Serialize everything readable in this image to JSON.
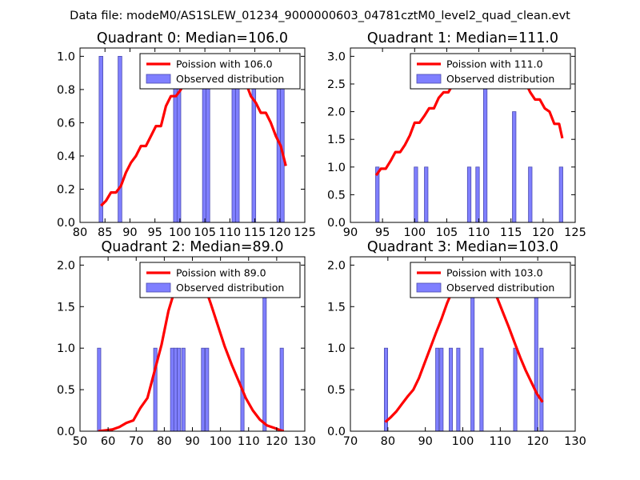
{
  "suptitle": "Data file: modeM0/AS1SLEW_01234_9000000603_04781cztM0_level2_quad_clean.evt",
  "colors": {
    "bar": "#7f7fff",
    "bar_edge": "#4b4bb0",
    "line": "#ff0000",
    "axis": "#000000"
  },
  "chart_data": [
    {
      "type": "bar+line",
      "title": "Quadrant 0: Median=106.0",
      "xlim": [
        80,
        125
      ],
      "ylim": [
        0,
        1.05
      ],
      "xticks": [
        80,
        85,
        90,
        95,
        100,
        105,
        110,
        115,
        120,
        125
      ],
      "yticks": [
        0.0,
        0.2,
        0.4,
        0.6,
        0.8,
        1.0
      ],
      "ytick_labels": [
        "0.0",
        "0.2",
        "0.4",
        "0.6",
        "0.8",
        "1.0"
      ],
      "legend": {
        "line_label": "Poission with 106.0",
        "bar_label": "Observed distribution",
        "loc": "upper right"
      },
      "bar_width": 0.75,
      "bars": [
        {
          "x": 84.2,
          "y": 1
        },
        {
          "x": 88.0,
          "y": 1
        },
        {
          "x": 99.1,
          "y": 1
        },
        {
          "x": 99.8,
          "y": 1
        },
        {
          "x": 104.9,
          "y": 1
        },
        {
          "x": 105.6,
          "y": 1
        },
        {
          "x": 110.8,
          "y": 1
        },
        {
          "x": 111.5,
          "y": 1
        },
        {
          "x": 114.8,
          "y": 1
        },
        {
          "x": 119.8,
          "y": 1
        },
        {
          "x": 120.5,
          "y": 1
        }
      ],
      "line": {
        "x": [
          84.2,
          85.2,
          86.2,
          87.2,
          88.2,
          89.2,
          90.2,
          91.2,
          92.2,
          93.2,
          94.2,
          95.2,
          96.2,
          97.2,
          98.2,
          99.2,
          100.2,
          101.2,
          102.2,
          103.2,
          104.2,
          105.2,
          106.2,
          107.2,
          108.2,
          109.2,
          110.2,
          111.2,
          112.2,
          113.2,
          114.2,
          115.2,
          116.2,
          117.2,
          118.2,
          119.2,
          120.2,
          121.2
        ],
        "y": [
          0.1,
          0.13,
          0.18,
          0.18,
          0.22,
          0.3,
          0.36,
          0.4,
          0.46,
          0.46,
          0.52,
          0.58,
          0.58,
          0.7,
          0.76,
          0.76,
          0.8,
          0.86,
          0.86,
          0.92,
          0.96,
          1.0,
          1.0,
          1.0,
          1.0,
          0.98,
          0.94,
          0.94,
          0.9,
          0.84,
          0.76,
          0.72,
          0.66,
          0.66,
          0.6,
          0.52,
          0.46,
          0.34
        ]
      }
    },
    {
      "type": "bar+line",
      "title": "Quadrant 1: Median=111.0",
      "xlim": [
        90,
        125
      ],
      "ylim": [
        0,
        3.15
      ],
      "xticks": [
        90,
        95,
        100,
        105,
        110,
        115,
        120,
        125
      ],
      "yticks": [
        0.0,
        0.5,
        1.0,
        1.5,
        2.0,
        2.5,
        3.0
      ],
      "ytick_labels": [
        "0.0",
        "0.5",
        "1.0",
        "1.5",
        "2.0",
        "2.5",
        "3.0"
      ],
      "legend": {
        "line_label": "Poission with 111.0",
        "bar_label": "Observed distribution",
        "loc": "upper right"
      },
      "bar_width": 0.55,
      "bars": [
        {
          "x": 94.2,
          "y": 1
        },
        {
          "x": 100.2,
          "y": 1
        },
        {
          "x": 101.8,
          "y": 1
        },
        {
          "x": 108.5,
          "y": 1
        },
        {
          "x": 109.8,
          "y": 1
        },
        {
          "x": 111.0,
          "y": 3
        },
        {
          "x": 115.5,
          "y": 2
        },
        {
          "x": 118.0,
          "y": 1
        },
        {
          "x": 122.8,
          "y": 1
        }
      ],
      "line": {
        "x": [
          94.0,
          94.75,
          95.5,
          96.25,
          97.0,
          97.75,
          98.5,
          99.25,
          100.0,
          100.75,
          101.5,
          102.25,
          103.0,
          103.75,
          104.5,
          105.25,
          106.0,
          106.75,
          107.5,
          108.25,
          109.0,
          109.75,
          110.5,
          111.25,
          112.0,
          112.75,
          113.5,
          114.25,
          115.0,
          115.75,
          116.5,
          117.25,
          118.0,
          118.75,
          119.5,
          120.25,
          121.0,
          121.75,
          122.5,
          123.0
        ],
        "y": [
          0.85,
          0.97,
          0.97,
          1.11,
          1.27,
          1.27,
          1.4,
          1.57,
          1.8,
          1.8,
          1.92,
          2.06,
          2.06,
          2.25,
          2.35,
          2.35,
          2.5,
          2.58,
          2.58,
          2.69,
          2.8,
          2.87,
          2.87,
          2.94,
          2.94,
          2.94,
          2.87,
          2.8,
          2.8,
          2.64,
          2.53,
          2.53,
          2.35,
          2.22,
          2.22,
          2.06,
          2.0,
          1.78,
          1.78,
          1.52
        ]
      }
    },
    {
      "type": "bar+line",
      "title": "Quadrant 2: Median=89.0",
      "xlim": [
        50,
        130
      ],
      "ylim": [
        0,
        2.1
      ],
      "xticks": [
        50,
        60,
        70,
        80,
        90,
        100,
        110,
        120,
        130
      ],
      "yticks": [
        0.0,
        0.5,
        1.0,
        1.5,
        2.0
      ],
      "ytick_labels": [
        "0.0",
        "0.5",
        "1.0",
        "1.5",
        "2.0"
      ],
      "legend": {
        "line_label": "Poission with 89.0",
        "bar_label": "Observed distribution",
        "loc": "upper right"
      },
      "bar_width": 1.2,
      "bars": [
        {
          "x": 56.8,
          "y": 1
        },
        {
          "x": 76.8,
          "y": 1
        },
        {
          "x": 82.8,
          "y": 1
        },
        {
          "x": 84.0,
          "y": 1
        },
        {
          "x": 85.2,
          "y": 1
        },
        {
          "x": 86.8,
          "y": 1
        },
        {
          "x": 93.8,
          "y": 1
        },
        {
          "x": 95.2,
          "y": 1
        },
        {
          "x": 107.8,
          "y": 1
        },
        {
          "x": 115.7,
          "y": 2
        },
        {
          "x": 121.8,
          "y": 1
        }
      ],
      "line": {
        "x": [
          56.5,
          59.0,
          61.5,
          64.0,
          66.5,
          69.0,
          71.5,
          74.0,
          76.5,
          79.0,
          81.5,
          84.0,
          86.5,
          89.0,
          91.5,
          94.0,
          96.5,
          99.0,
          101.5,
          104.0,
          106.5,
          109.0,
          111.5,
          114.0,
          116.5,
          119.0,
          121.5,
          122.5
        ],
        "y": [
          0.0,
          0.01,
          0.02,
          0.05,
          0.1,
          0.13,
          0.28,
          0.4,
          0.72,
          1.04,
          1.45,
          1.73,
          1.92,
          2.0,
          1.94,
          1.78,
          1.54,
          1.28,
          1.02,
          0.8,
          0.6,
          0.4,
          0.25,
          0.14,
          0.07,
          0.04,
          0.01,
          0.0
        ]
      }
    },
    {
      "type": "bar+line",
      "title": "Quadrant 3: Median=103.0",
      "xlim": [
        70,
        130
      ],
      "ylim": [
        0,
        2.1
      ],
      "xticks": [
        70,
        80,
        90,
        100,
        110,
        120,
        130
      ],
      "yticks": [
        0.0,
        0.5,
        1.0,
        1.5,
        2.0
      ],
      "ytick_labels": [
        "0.0",
        "0.5",
        "1.0",
        "1.5",
        "2.0"
      ],
      "legend": {
        "line_label": "Poission with 103.0",
        "bar_label": "Observed distribution",
        "loc": "upper right"
      },
      "bar_width": 0.9,
      "bars": [
        {
          "x": 79.5,
          "y": 1
        },
        {
          "x": 93.2,
          "y": 1
        },
        {
          "x": 94.3,
          "y": 1
        },
        {
          "x": 96.8,
          "y": 1
        },
        {
          "x": 98.8,
          "y": 1
        },
        {
          "x": 102.6,
          "y": 2
        },
        {
          "x": 105.0,
          "y": 1
        },
        {
          "x": 114.0,
          "y": 1
        },
        {
          "x": 119.6,
          "y": 2
        },
        {
          "x": 121.0,
          "y": 1
        }
      ],
      "line": {
        "x": [
          79.3,
          80.8,
          82.3,
          83.8,
          85.3,
          86.8,
          88.3,
          89.8,
          91.3,
          92.8,
          94.3,
          95.8,
          97.3,
          98.8,
          100.3,
          101.8,
          103.3,
          104.8,
          106.3,
          107.8,
          109.3,
          110.8,
          112.3,
          113.8,
          115.3,
          116.8,
          118.3,
          119.8,
          121.3
        ],
        "y": [
          0.11,
          0.17,
          0.24,
          0.33,
          0.42,
          0.5,
          0.64,
          0.82,
          1.0,
          1.18,
          1.35,
          1.54,
          1.7,
          1.85,
          1.95,
          2.0,
          2.0,
          1.96,
          1.87,
          1.75,
          1.59,
          1.42,
          1.25,
          1.07,
          0.89,
          0.73,
          0.59,
          0.45,
          0.35
        ]
      }
    }
  ]
}
